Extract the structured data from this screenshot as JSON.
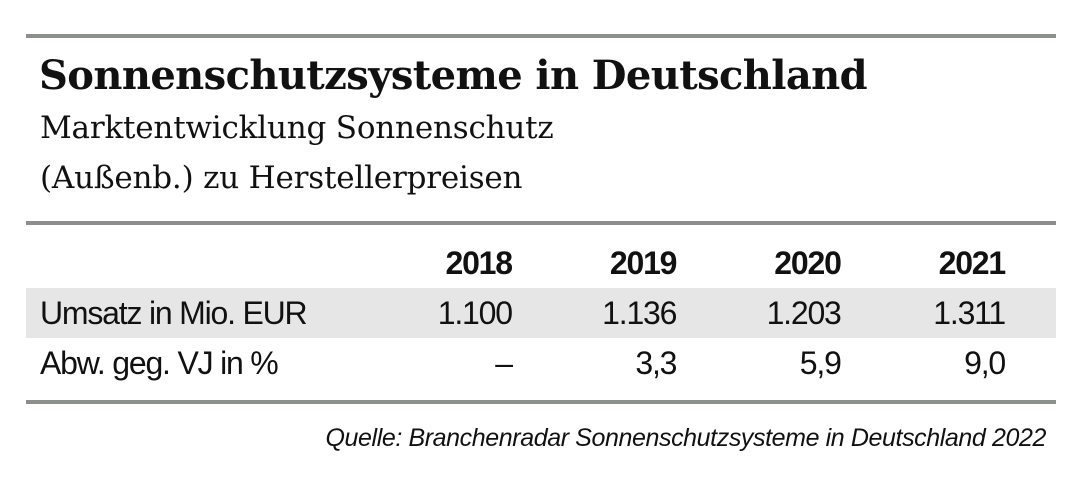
{
  "chart_data": {
    "type": "table",
    "title": "Sonnenschutzsysteme in Deutschland",
    "subtitle_lines": [
      "Marktentwicklung Sonnenschutz",
      "(Außenb.) zu Herstellerpreisen"
    ],
    "columns": [
      "2018",
      "2019",
      "2020",
      "2021"
    ],
    "rows": [
      {
        "label": "Umsatz in Mio. EUR",
        "values": [
          "1.100",
          "1.136",
          "1.203",
          "1.311"
        ]
      },
      {
        "label": "Abw. geg. VJ in %",
        "values": [
          "–",
          "3,3",
          "5,9",
          "9,0"
        ]
      }
    ],
    "source": "Quelle: Branchenradar Sonnenschutzsysteme in Deutschland 2022",
    "colors": {
      "rules": "#8b918a",
      "row_shade": "#e6e6e6",
      "text": "#111111"
    }
  }
}
